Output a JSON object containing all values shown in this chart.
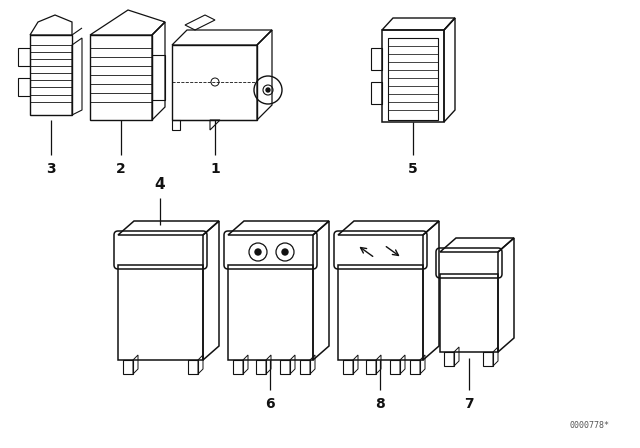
{
  "background_color": "#ffffff",
  "line_color": "#111111",
  "fig_width": 6.4,
  "fig_height": 4.48,
  "dpi": 100,
  "watermark": "0000778*"
}
